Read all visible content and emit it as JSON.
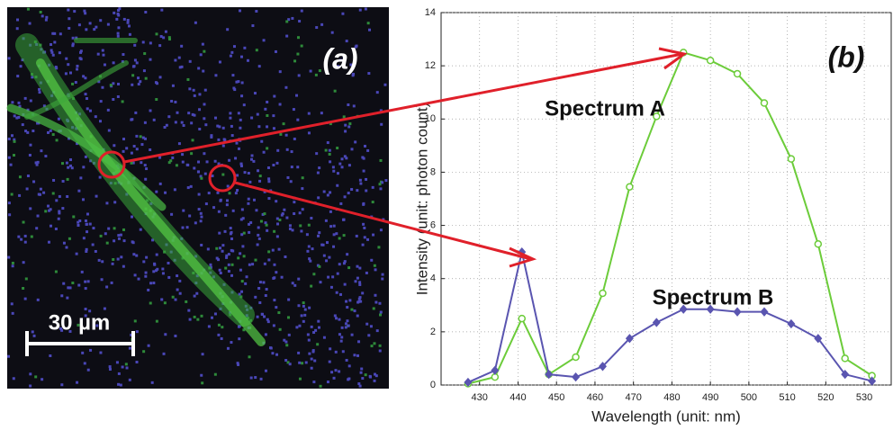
{
  "chart_data": {
    "type": "line",
    "panel_a_label": "(a)",
    "panel_b_label": "(b)",
    "scale_bar_label": "30 µm",
    "xlabel": "Wavelength (unit: nm)",
    "ylabel": "Intensity (unit: photon count)",
    "x": [
      427,
      434,
      441,
      448,
      455,
      462,
      469,
      476,
      483,
      490,
      497,
      504,
      511,
      518,
      525,
      532
    ],
    "series": [
      {
        "name": "Spectrum A",
        "color": "#6ccc3a",
        "marker": "circle",
        "values": [
          0.05,
          0.3,
          2.5,
          0.4,
          1.05,
          3.45,
          7.45,
          10.1,
          12.5,
          12.2,
          11.7,
          10.6,
          8.5,
          5.3,
          1.0,
          0.35
        ]
      },
      {
        "name": "Spectrum B",
        "color": "#5a55b0",
        "marker": "diamond",
        "values": [
          0.1,
          0.55,
          5.0,
          0.4,
          0.3,
          0.7,
          1.75,
          2.35,
          2.85,
          2.85,
          2.75,
          2.75,
          2.3,
          1.75,
          0.4,
          0.15
        ]
      }
    ],
    "xlim": [
      420,
      537
    ],
    "xticks": [
      430,
      440,
      450,
      460,
      470,
      480,
      490,
      500,
      510,
      520,
      530
    ],
    "ylim": [
      0,
      14
    ],
    "yticks": [
      0,
      2,
      4,
      6,
      8,
      10,
      12,
      14
    ],
    "grid": true
  }
}
